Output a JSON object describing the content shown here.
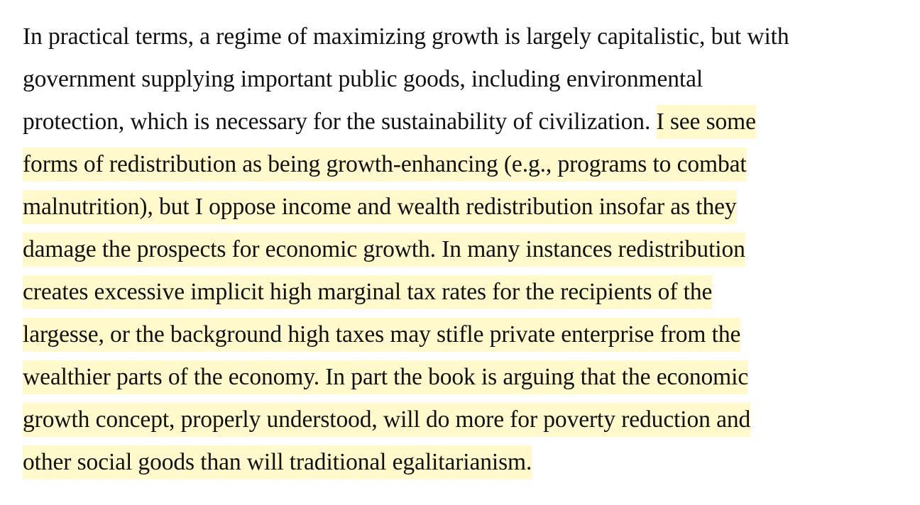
{
  "paragraph": {
    "lines": [
      {
        "plain": "In practical terms, a regime of maximizing growth is largely capitalistic, but with",
        "highlight": ""
      },
      {
        "plain": "government supplying important public goods, including environmental",
        "highlight": ""
      },
      {
        "plain": "protection, which is necessary for the sustainability of civilization. ",
        "highlight": "I see some"
      },
      {
        "plain": "",
        "highlight": "forms of redistribution as being growth-enhancing (e.g., programs to combat"
      },
      {
        "plain": "",
        "highlight": "malnutrition), but I oppose income and wealth redistribution insofar as they"
      },
      {
        "plain": "",
        "highlight": "damage the prospects for economic growth. In many instances redistribution"
      },
      {
        "plain": "",
        "highlight": "creates excessive implicit high marginal tax rates for the recipients of the"
      },
      {
        "plain": "",
        "highlight": "largesse, or the background high taxes may stifle private enterprise from the"
      },
      {
        "plain": "",
        "highlight": "wealthier parts of the economy. In part the book is arguing that the economic"
      },
      {
        "plain": "",
        "highlight": "growth concept, properly understood, will do more for poverty reduction and"
      },
      {
        "plain": "",
        "highlight": "other social goods than will traditional egalitarianism."
      }
    ],
    "highlight_color": "#fff9cc"
  }
}
